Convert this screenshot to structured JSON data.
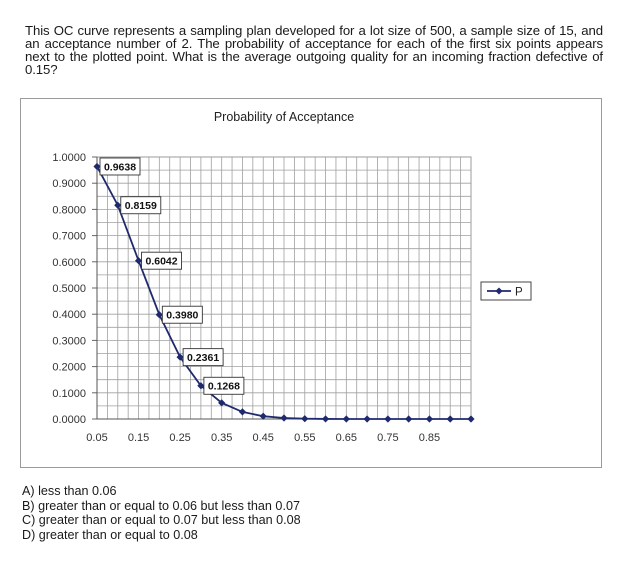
{
  "question": "This OC curve represents a sampling plan developed for a lot size of 500, a sample size of 15, and an acceptance number of 2. The probability of acceptance for each of the first six points appears next to the plotted point. What is the average outgoing quality for an incoming fraction defective of 0.15?",
  "answers": [
    "A) less than 0.06",
    "B) greater than or equal to 0.06 but less than 0.07",
    "C) greater than or equal to 0.07 but less than 0.08",
    "D) greater than or equal to 0.08"
  ],
  "chart_data": {
    "type": "line",
    "title": "Probability of Acceptance",
    "xlabel": "",
    "ylabel": "",
    "ylim": [
      0,
      1
    ],
    "y_ticks": [
      "1.0000",
      "0.9000",
      "0.8000",
      "0.7000",
      "0.6000",
      "0.5000",
      "0.4000",
      "0.3000",
      "0.2000",
      "0.1000",
      "0.0000"
    ],
    "x_tick_labels": [
      "0.05",
      "0.15",
      "0.25",
      "0.35",
      "0.45",
      "0.55",
      "0.65",
      "0.75",
      "0.85"
    ],
    "grid": true,
    "legend_position": "right",
    "series": [
      {
        "name": "P",
        "color": "#1f2a6e",
        "x": [
          0.05,
          0.1,
          0.15,
          0.2,
          0.25,
          0.3,
          0.35,
          0.4,
          0.45,
          0.5,
          0.55,
          0.6,
          0.65,
          0.7,
          0.75,
          0.8,
          0.85,
          0.9,
          0.95
        ],
        "values": [
          0.9638,
          0.8159,
          0.6042,
          0.398,
          0.2361,
          0.1268,
          0.0617,
          0.0271,
          0.0107,
          0.0037,
          0.0011,
          0.0003,
          0.0001,
          0.0,
          0.0,
          0.0,
          0.0,
          0.0,
          0.0
        ]
      }
    ],
    "data_labels": [
      "0.9638",
      "0.8159",
      "0.6042",
      "0.3980",
      "0.2361",
      "0.1268"
    ]
  }
}
